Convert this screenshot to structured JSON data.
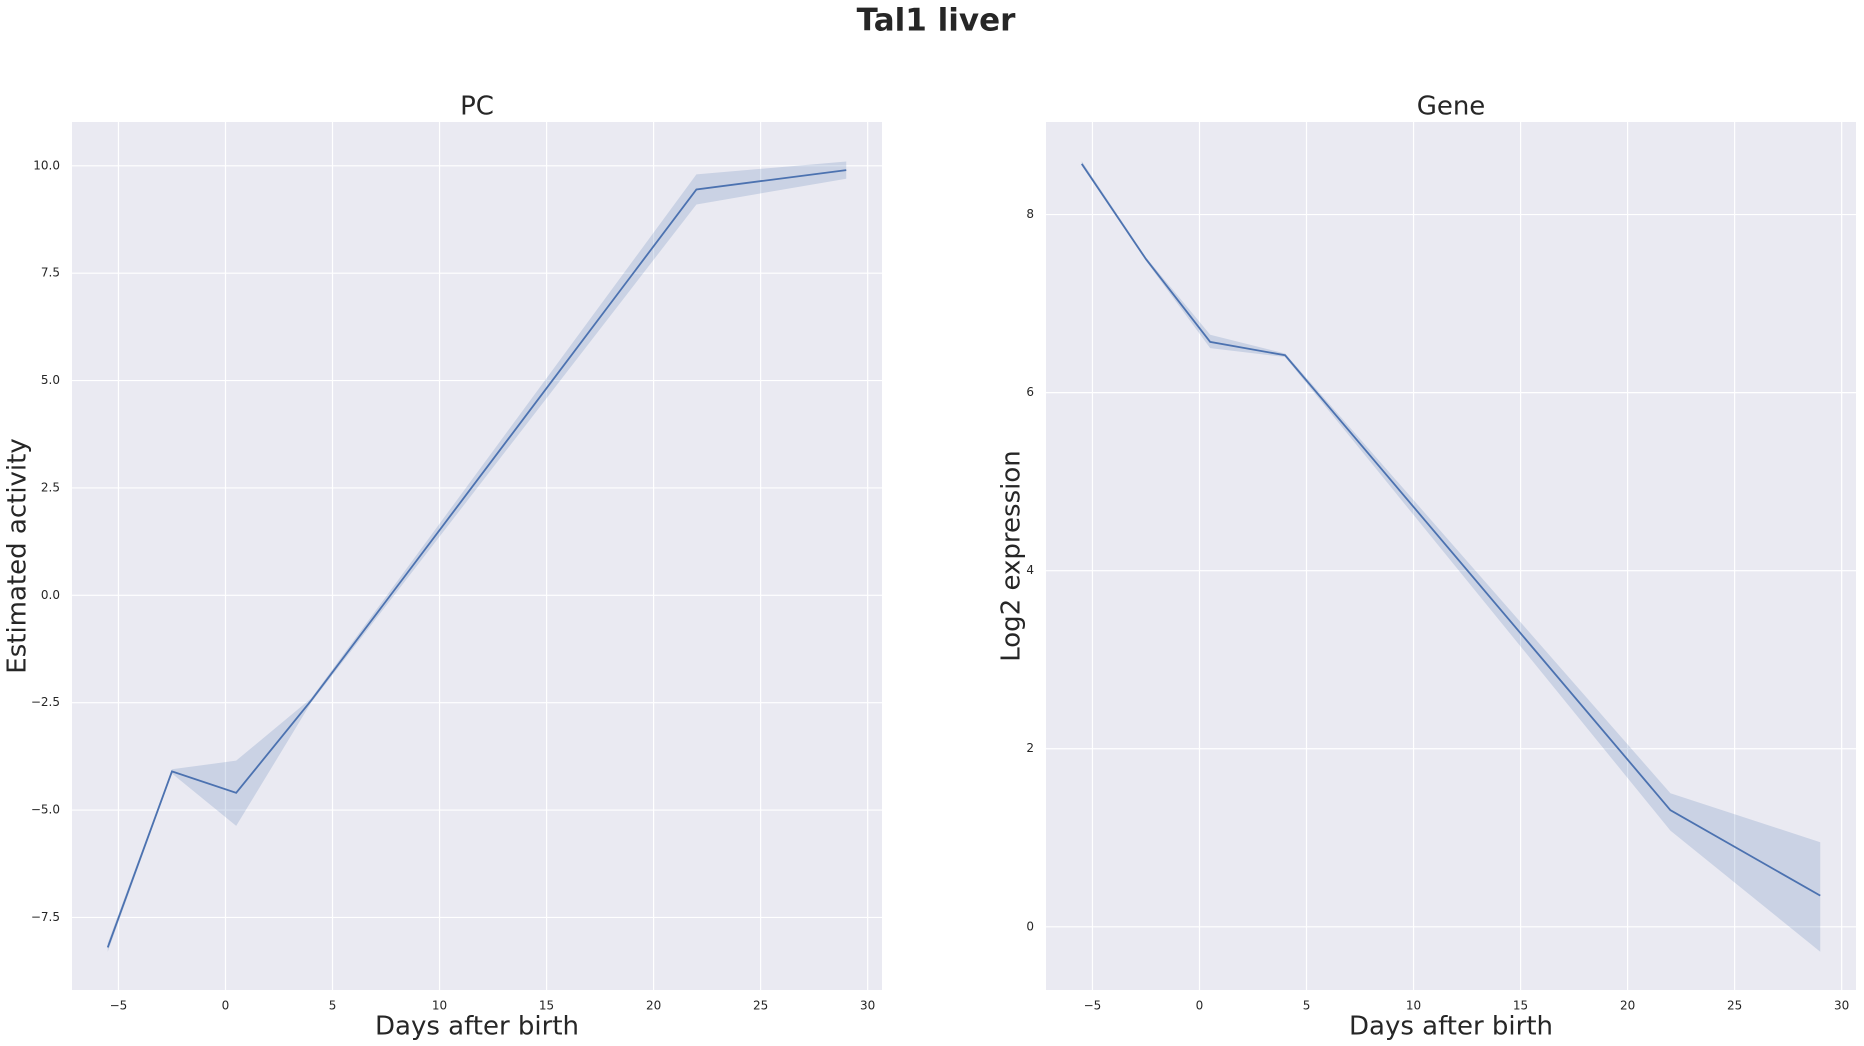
{
  "title": "Tal1 liver",
  "chart_data": [
    {
      "type": "line",
      "title": "PC",
      "x_label": "Days after birth",
      "y_label": "Estimated activity",
      "x": [
        -5.5,
        -2.5,
        0.5,
        4,
        22,
        29
      ],
      "series": [
        {
          "color": "#4c72b0",
          "values": [
            -8.2,
            -4.1,
            -4.6,
            -2.45,
            9.45,
            9.9
          ],
          "ci_lower": [
            -8.3,
            -4.15,
            -5.37,
            -2.5,
            9.1,
            9.7
          ],
          "ci_upper": [
            -8.1,
            -4.05,
            -3.85,
            -2.4,
            9.8,
            10.1
          ]
        }
      ],
      "xlim": [
        -7.17,
        30.67
      ],
      "ylim": [
        -9.19,
        11.02
      ],
      "xticks": [
        {
          "value": -5,
          "label": "−5"
        },
        0,
        5,
        10,
        15,
        20,
        25,
        30
      ],
      "yticks": [
        {
          "value": -7.5,
          "label": "−7.5"
        },
        {
          "value": -5,
          "label": "−5.0"
        },
        {
          "value": -2.5,
          "label": "−2.5"
        },
        {
          "value": 0,
          "label": "0.0"
        },
        2.5,
        {
          "value": 5,
          "label": "5.0"
        },
        7.5,
        {
          "value": 10,
          "label": "10.0"
        }
      ],
      "grid": true
    },
    {
      "type": "line",
      "title": "Gene",
      "x_label": "Days after birth",
      "y_label": "Log2 expression",
      "x": [
        -5.5,
        -2.5,
        0.5,
        4,
        22,
        29
      ],
      "series": [
        {
          "color": "#4c72b0",
          "values": [
            8.57,
            7.5,
            6.57,
            6.42,
            1.31,
            0.35
          ],
          "ci_lower": [
            8.55,
            7.48,
            6.5,
            6.4,
            1.08,
            -0.28
          ],
          "ci_upper": [
            8.6,
            7.52,
            6.65,
            6.44,
            1.5,
            0.95
          ]
        }
      ],
      "xlim": [
        -7.17,
        30.67
      ],
      "ylim": [
        -0.71,
        9.04
      ],
      "xticks": [
        {
          "value": -5,
          "label": "−5"
        },
        0,
        5,
        10,
        15,
        20,
        25,
        30
      ],
      "yticks": [
        0,
        2,
        4,
        6,
        8
      ],
      "grid": true
    }
  ]
}
